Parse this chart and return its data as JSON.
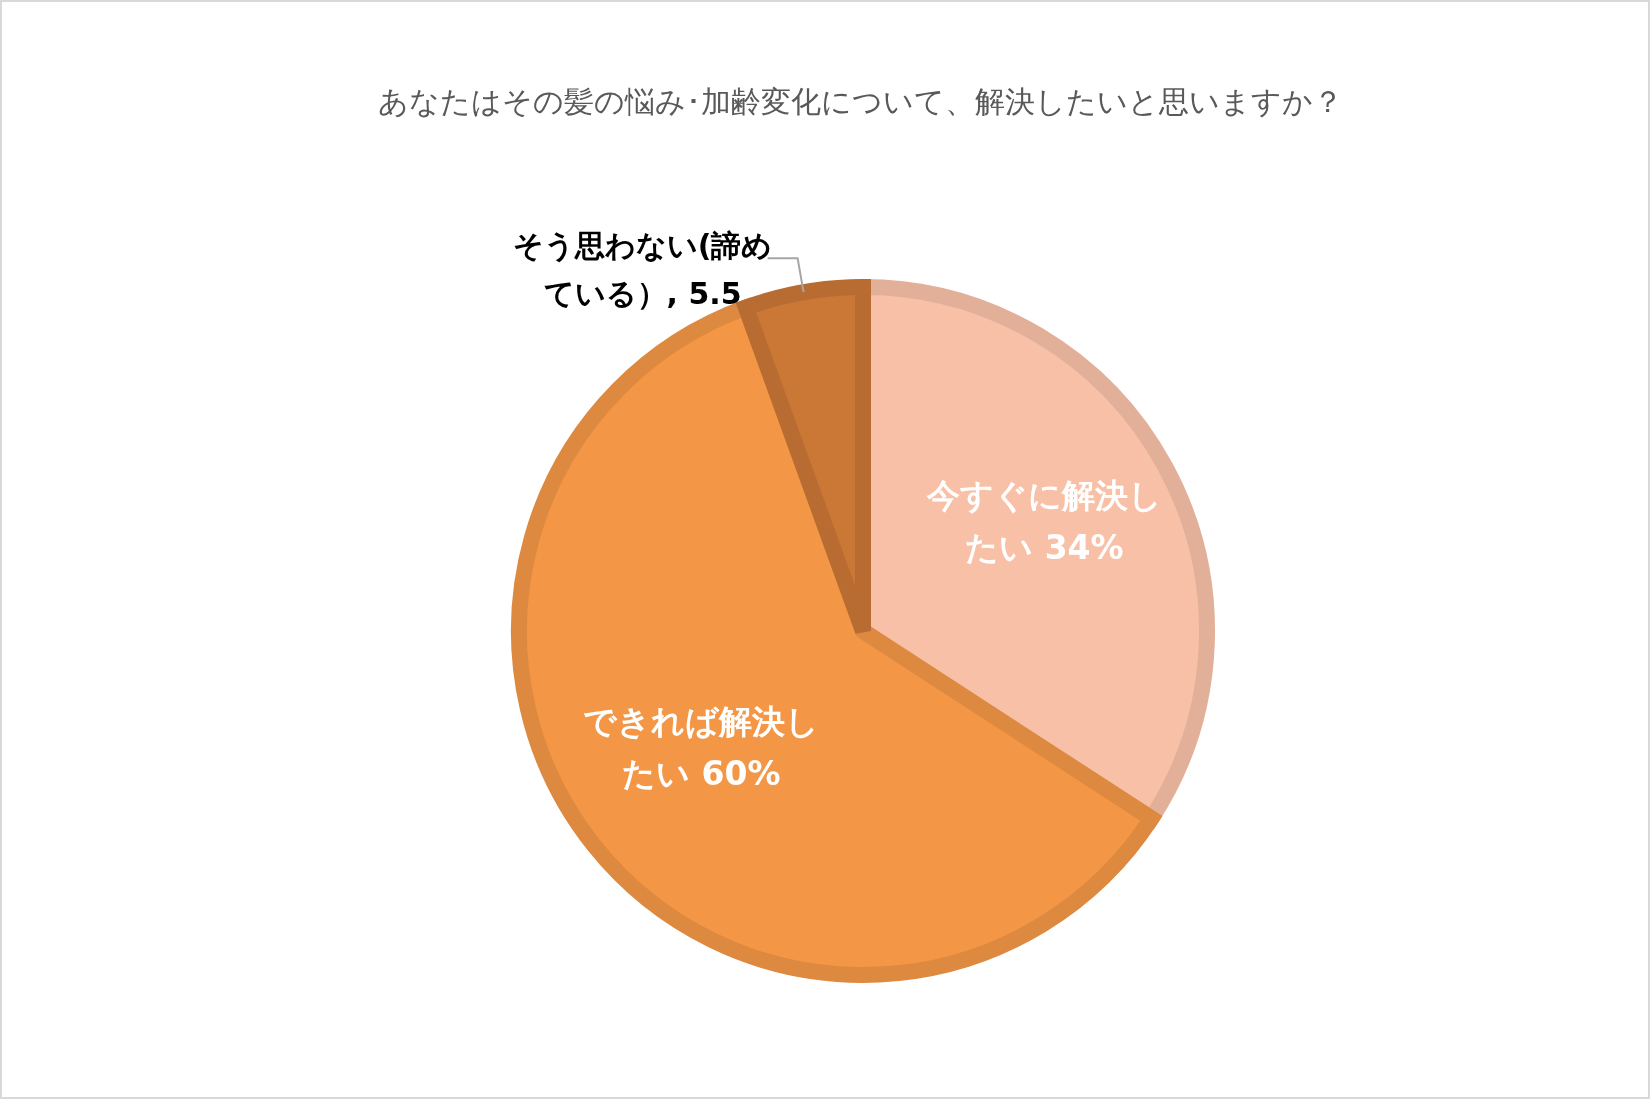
{
  "chart_data": {
    "type": "pie",
    "title": "あなたはその髪の悩み･加齢変化について、解決したいと思いますか？",
    "categories": [
      "今すぐに解決したい",
      "できれば解決したい",
      "そう思わない(諦めている）"
    ],
    "values": [
      34,
      60,
      5.5
    ],
    "colors": [
      "#f8c1a7",
      "#f39646",
      "#cb7736"
    ],
    "value_labels": [
      "34%",
      "60%",
      "5.5"
    ]
  }
}
